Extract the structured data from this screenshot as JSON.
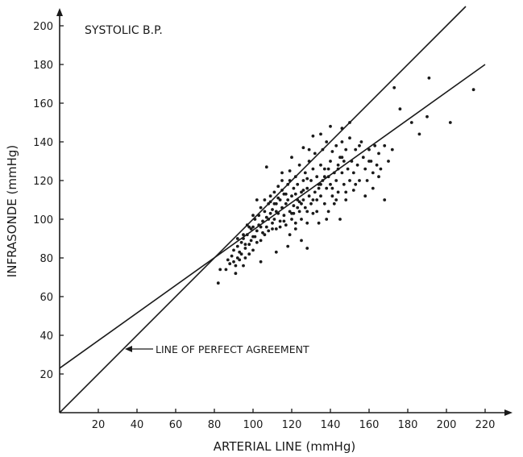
{
  "chart_data": {
    "type": "scatter",
    "title": "SYSTOLIC B.P.",
    "xlabel": "ARTERIAL LINE (mmHg)",
    "ylabel": "INFRASONDE (mmHg)",
    "xlim": [
      0,
      230
    ],
    "ylim": [
      0,
      205
    ],
    "xticks": [
      20,
      40,
      60,
      80,
      100,
      120,
      140,
      160,
      180,
      200,
      220
    ],
    "yticks": [
      20,
      40,
      60,
      80,
      100,
      120,
      140,
      160,
      180,
      200
    ],
    "grid": false,
    "annotation": "LINE OF PERFECT AGREEMENT",
    "lines": [
      {
        "x": [
          0,
          210
        ],
        "y": [
          0,
          210
        ]
      },
      {
        "x": [
          0,
          220
        ],
        "y": [
          23,
          180
        ]
      }
    ],
    "points": [
      [
        82,
        67
      ],
      [
        83,
        74
      ],
      [
        86,
        74
      ],
      [
        87,
        79
      ],
      [
        88,
        77
      ],
      [
        89,
        81
      ],
      [
        90,
        78
      ],
      [
        90,
        84
      ],
      [
        91,
        76
      ],
      [
        91,
        72
      ],
      [
        92,
        80
      ],
      [
        92,
        86
      ],
      [
        93,
        83
      ],
      [
        93,
        79
      ],
      [
        94,
        88
      ],
      [
        95,
        76
      ],
      [
        95,
        90
      ],
      [
        96,
        85
      ],
      [
        96,
        80
      ],
      [
        97,
        92
      ],
      [
        98,
        87
      ],
      [
        98,
        82
      ],
      [
        99,
        95
      ],
      [
        99,
        89
      ],
      [
        100,
        84
      ],
      [
        100,
        96
      ],
      [
        101,
        91
      ],
      [
        101,
        100
      ],
      [
        102,
        88
      ],
      [
        102,
        94
      ],
      [
        103,
        102
      ],
      [
        103,
        97
      ],
      [
        104,
        89
      ],
      [
        104,
        106
      ],
      [
        105,
        99
      ],
      [
        105,
        93
      ],
      [
        106,
        104
      ],
      [
        106,
        110
      ],
      [
        107,
        96
      ],
      [
        107,
        101
      ],
      [
        108,
        108
      ],
      [
        108,
        94
      ],
      [
        109,
        112
      ],
      [
        109,
        103
      ],
      [
        110,
        98
      ],
      [
        110,
        105
      ],
      [
        111,
        114
      ],
      [
        111,
        100
      ],
      [
        112,
        108
      ],
      [
        112,
        95
      ],
      [
        113,
        117
      ],
      [
        113,
        103
      ],
      [
        114,
        110
      ],
      [
        114,
        99
      ],
      [
        115,
        106
      ],
      [
        115,
        120
      ],
      [
        116,
        102
      ],
      [
        116,
        113
      ],
      [
        117,
        108
      ],
      [
        117,
        97
      ],
      [
        118,
        118
      ],
      [
        118,
        110
      ],
      [
        119,
        104
      ],
      [
        119,
        125
      ],
      [
        120,
        112
      ],
      [
        120,
        100
      ],
      [
        121,
        116
      ],
      [
        121,
        107
      ],
      [
        122,
        122
      ],
      [
        122,
        95
      ],
      [
        123,
        110
      ],
      [
        123,
        118
      ],
      [
        124,
        104
      ],
      [
        124,
        128
      ],
      [
        125,
        114
      ],
      [
        125,
        100
      ],
      [
        126,
        120
      ],
      [
        126,
        110
      ],
      [
        127,
        106
      ],
      [
        127,
        124
      ],
      [
        128,
        116
      ],
      [
        128,
        98
      ],
      [
        129,
        130
      ],
      [
        129,
        112
      ],
      [
        130,
        108
      ],
      [
        130,
        120
      ],
      [
        131,
        126
      ],
      [
        131,
        103
      ],
      [
        132,
        114
      ],
      [
        132,
        134
      ],
      [
        133,
        110
      ],
      [
        133,
        122
      ],
      [
        134,
        118
      ],
      [
        134,
        98
      ],
      [
        135,
        128
      ],
      [
        135,
        112
      ],
      [
        136,
        136
      ],
      [
        136,
        120
      ],
      [
        137,
        108
      ],
      [
        137,
        126
      ],
      [
        138,
        116
      ],
      [
        138,
        140
      ],
      [
        139,
        122
      ],
      [
        139,
        104
      ],
      [
        140,
        130
      ],
      [
        140,
        118
      ],
      [
        141,
        112
      ],
      [
        141,
        135
      ],
      [
        142,
        124
      ],
      [
        142,
        108
      ],
      [
        143,
        138
      ],
      [
        143,
        120
      ],
      [
        144,
        128
      ],
      [
        144,
        114
      ],
      [
        145,
        132
      ],
      [
        145,
        100
      ],
      [
        146,
        124
      ],
      [
        146,
        140
      ],
      [
        147,
        118
      ],
      [
        147,
        130
      ],
      [
        148,
        110
      ],
      [
        148,
        136
      ],
      [
        149,
        126
      ],
      [
        150,
        142
      ],
      [
        150,
        120
      ],
      [
        151,
        130
      ],
      [
        152,
        124
      ],
      [
        152,
        115
      ],
      [
        153,
        136
      ],
      [
        154,
        128
      ],
      [
        155,
        120
      ],
      [
        156,
        140
      ],
      [
        157,
        132
      ],
      [
        158,
        126
      ],
      [
        159,
        120
      ],
      [
        160,
        136
      ],
      [
        161,
        130
      ],
      [
        162,
        124
      ],
      [
        163,
        138
      ],
      [
        164,
        128
      ],
      [
        165,
        134
      ],
      [
        166,
        126
      ],
      [
        168,
        138
      ],
      [
        170,
        130
      ],
      [
        172,
        136
      ],
      [
        107,
        127
      ],
      [
        112,
        83
      ],
      [
        118,
        86
      ],
      [
        125,
        89
      ],
      [
        128,
        85
      ],
      [
        100,
        102
      ],
      [
        97,
        97
      ],
      [
        104,
        78
      ],
      [
        95,
        92
      ],
      [
        102,
        110
      ],
      [
        109,
        109
      ],
      [
        115,
        124
      ],
      [
        120,
        132
      ],
      [
        126,
        137
      ],
      [
        131,
        143
      ],
      [
        135,
        144
      ],
      [
        140,
        148
      ],
      [
        146,
        147
      ],
      [
        150,
        150
      ],
      [
        155,
        138
      ],
      [
        160,
        130
      ],
      [
        165,
        122
      ],
      [
        168,
        110
      ],
      [
        133,
        104
      ],
      [
        138,
        100
      ],
      [
        143,
        110
      ],
      [
        148,
        114
      ],
      [
        153,
        118
      ],
      [
        158,
        112
      ],
      [
        162,
        116
      ],
      [
        120,
        103
      ],
      [
        122,
        113
      ],
      [
        124,
        109
      ],
      [
        126,
        115
      ],
      [
        128,
        121
      ],
      [
        111,
        108
      ],
      [
        113,
        111
      ],
      [
        115,
        115
      ],
      [
        117,
        113
      ],
      [
        119,
        120
      ],
      [
        121,
        103
      ],
      [
        123,
        106
      ],
      [
        125,
        108
      ],
      [
        114,
        96
      ],
      [
        116,
        99
      ],
      [
        135,
        118
      ],
      [
        137,
        122
      ],
      [
        139,
        126
      ],
      [
        141,
        116
      ],
      [
        144,
        126
      ],
      [
        146,
        132
      ],
      [
        108,
        100
      ],
      [
        110,
        95
      ],
      [
        112,
        104
      ],
      [
        104,
        96
      ],
      [
        106,
        92
      ],
      [
        98,
        96
      ],
      [
        96,
        87
      ],
      [
        94,
        82
      ],
      [
        92,
        90
      ],
      [
        100,
        91
      ],
      [
        173,
        168
      ],
      [
        176,
        157
      ],
      [
        182,
        150
      ],
      [
        186,
        144
      ],
      [
        191,
        173
      ],
      [
        190,
        153
      ],
      [
        202,
        150
      ],
      [
        214,
        167
      ],
      [
        119,
        92
      ],
      [
        122,
        98
      ],
      [
        128,
        104
      ],
      [
        131,
        110
      ],
      [
        134,
        116
      ],
      [
        129,
        136
      ]
    ]
  }
}
